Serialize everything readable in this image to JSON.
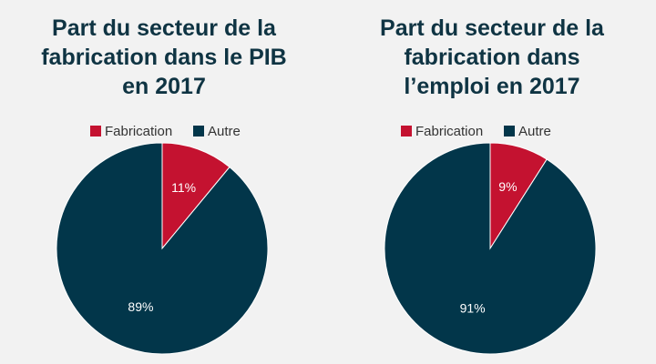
{
  "colors": {
    "background": "#f2f2f2",
    "title": "#0f3443",
    "fabrication": "#c41230",
    "autre": "#02364a"
  },
  "chart_data": [
    {
      "type": "pie",
      "title_lines": [
        "Part du secteur de la",
        "fabrication dans le PIB",
        "en 2017"
      ],
      "legend": [
        "Fabrication",
        "Autre"
      ],
      "slices": [
        {
          "label": "Fabrication",
          "value": 11,
          "display": "11%",
          "color": "#c41230"
        },
        {
          "label": "Autre",
          "value": 89,
          "display": "89%",
          "color": "#02364a"
        }
      ]
    },
    {
      "type": "pie",
      "title_lines": [
        "Part du secteur de la",
        "fabrication dans",
        "l’emploi en 2017"
      ],
      "legend": [
        "Fabrication",
        "Autre"
      ],
      "slices": [
        {
          "label": "Fabrication",
          "value": 9,
          "display": "9%",
          "color": "#c41230"
        },
        {
          "label": "Autre",
          "value": 91,
          "display": "91%",
          "color": "#02364a"
        }
      ]
    }
  ]
}
